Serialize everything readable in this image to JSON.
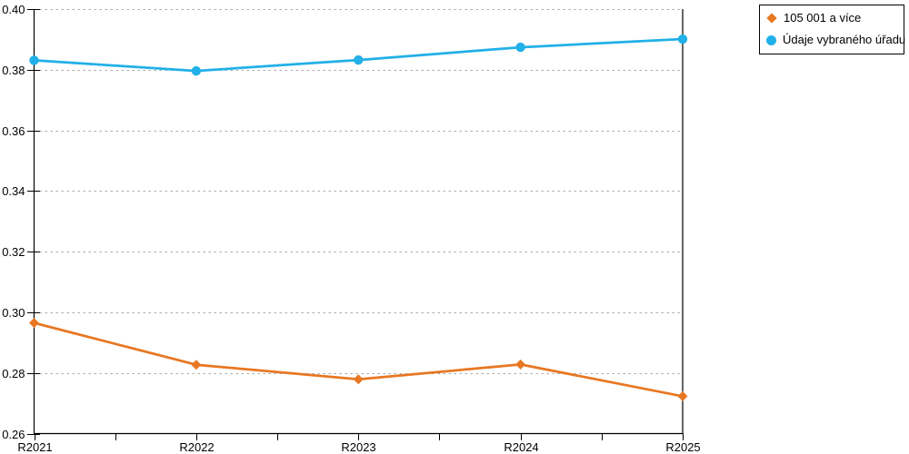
{
  "chart_data": {
    "type": "line",
    "title": "",
    "xlabel": "",
    "ylabel": "",
    "categories": [
      "R2021",
      "R2022",
      "R2023",
      "R2024",
      "R2025"
    ],
    "series": [
      {
        "name": "105 001 a více",
        "marker": "diamond",
        "color": "#E87722",
        "values": [
          0.2965,
          0.2827,
          0.2779,
          0.2828,
          0.2723
        ]
      },
      {
        "name": "Údaje vybraného úřadu",
        "marker": "circle",
        "color": "#22B0E8",
        "values": [
          0.3831,
          0.3796,
          0.3832,
          0.3874,
          0.3901
        ]
      }
    ],
    "ylim": [
      0.26,
      0.4
    ],
    "ytick_step": 0.02,
    "ytick_labels": [
      "0.26",
      "0.28",
      "0.30",
      "0.32",
      "0.34",
      "0.36",
      "0.38",
      "0.40"
    ],
    "grid": "horizontal-dashed",
    "grid_color": "#ABABAB",
    "axis_color": "#000000",
    "legend_position": "top-right"
  }
}
